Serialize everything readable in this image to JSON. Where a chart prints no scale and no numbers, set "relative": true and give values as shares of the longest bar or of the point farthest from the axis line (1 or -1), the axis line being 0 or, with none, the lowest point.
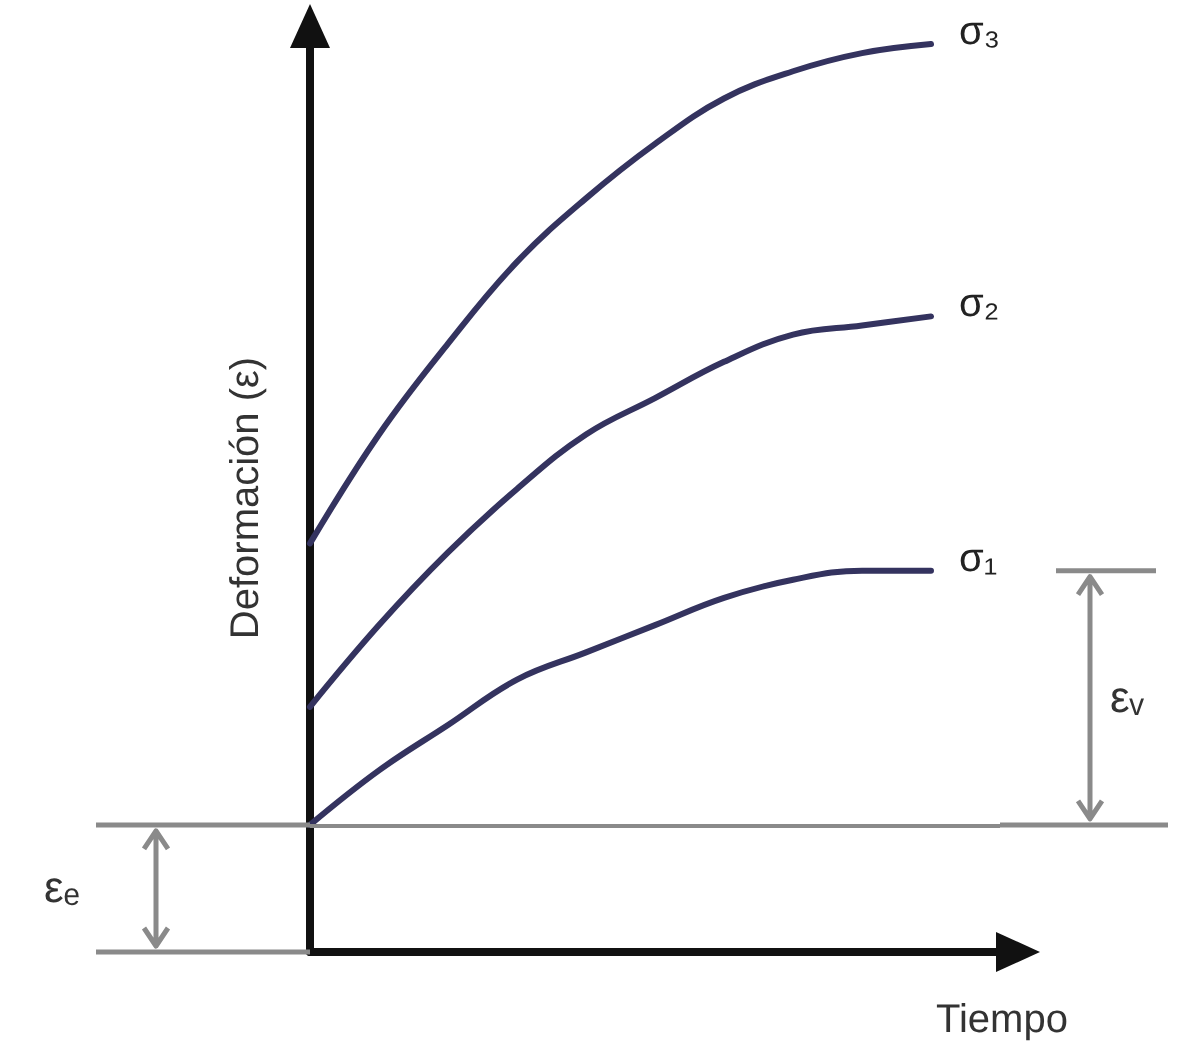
{
  "chart_data": {
    "type": "line",
    "relative": true,
    "ylabel": "Deformación (ε)",
    "xlabel": "Tiempo",
    "categories": [
      null,
      null,
      null,
      null,
      null,
      null,
      null,
      null,
      null,
      null,
      null
    ],
    "series": [
      {
        "name": "σ₁",
        "color": "#34335f",
        "values": [
          0.14,
          0.2,
          0.25,
          0.3,
          0.33,
          0.36,
          0.39,
          0.41,
          0.42,
          0.42,
          null
        ]
      },
      {
        "name": "σ₂",
        "color": "#34335f",
        "values": [
          0.27,
          0.36,
          0.44,
          0.51,
          0.57,
          0.61,
          0.65,
          0.68,
          0.69,
          0.7,
          null
        ]
      },
      {
        "name": "σ₃",
        "color": "#34335f",
        "values": [
          0.45,
          0.57,
          0.67,
          0.76,
          0.83,
          0.89,
          0.94,
          0.97,
          0.99,
          1.0,
          null
        ]
      }
    ],
    "ref_lines": [
      {
        "axis": "y",
        "value": 0.14,
        "color": "#8a8a8a"
      }
    ],
    "annotations": [
      "εₑ",
      "εᵥ"
    ],
    "legend": false,
    "grid": false,
    "marker": "none",
    "line_style": "solid"
  }
}
